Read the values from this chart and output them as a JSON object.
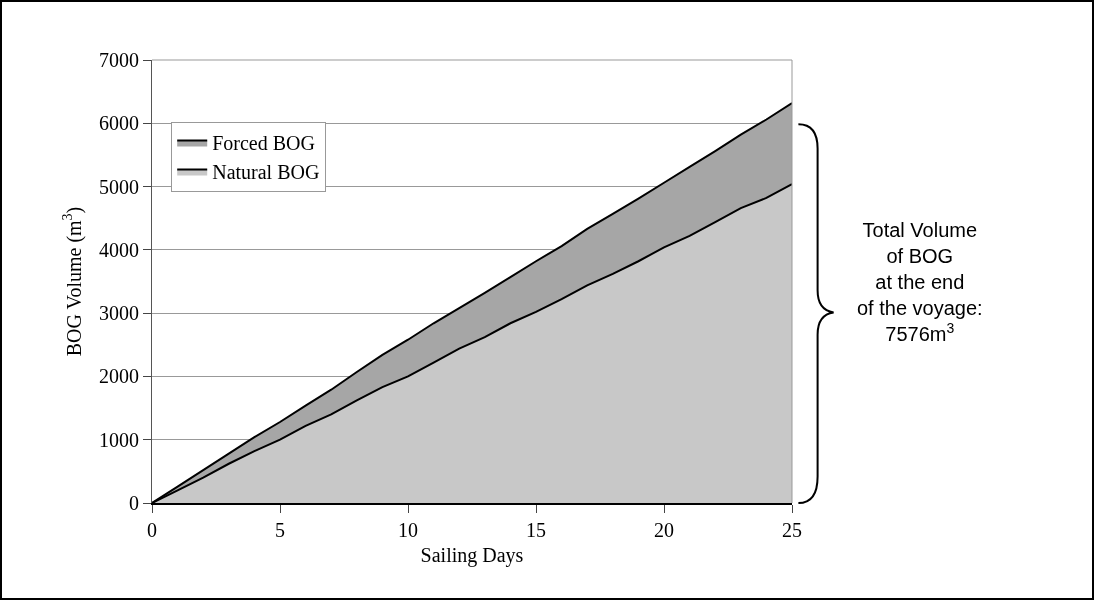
{
  "chart_data": {
    "type": "area",
    "stacked": true,
    "xlabel": "Sailing Days",
    "ylabel": "BOG Volume (m$^{3}$)",
    "x": [
      0,
      1,
      2,
      3,
      4,
      5,
      6,
      7,
      8,
      9,
      10,
      11,
      12,
      13,
      14,
      15,
      16,
      17,
      18,
      19,
      20,
      21,
      22,
      23,
      24,
      25
    ],
    "series": [
      {
        "name": "Natural BOG",
        "color": "#c8c8c8",
        "values": [
          0,
          200,
          400,
          620,
          820,
          1000,
          1220,
          1400,
          1620,
          1830,
          2000,
          2220,
          2440,
          2620,
          2840,
          3020,
          3220,
          3440,
          3620,
          3820,
          4040,
          4220,
          4440,
          4660,
          4820,
          5040
        ]
      },
      {
        "name": "Forced BOG",
        "color": "#a6a6a6",
        "values": [
          0,
          60,
          120,
          160,
          220,
          280,
          320,
          390,
          450,
          510,
          580,
          620,
          640,
          700,
          730,
          800,
          840,
          890,
          950,
          990,
          1020,
          1090,
          1120,
          1160,
          1240,
          1280
        ]
      }
    ],
    "xlim": [
      0,
      25
    ],
    "xticks": [
      0,
      5,
      10,
      15,
      20,
      25
    ],
    "ylim": [
      0,
      7000
    ],
    "yticks": [
      0,
      1000,
      2000,
      3000,
      4000,
      5000,
      6000,
      7000
    ],
    "grid": "y",
    "legend": "top left",
    "marker": "none",
    "line_style": "solid",
    "annotations": [
      "Total Volume\nof BOG\nat the end\nof the voyage:\n7576m$^{3}$"
    ]
  }
}
